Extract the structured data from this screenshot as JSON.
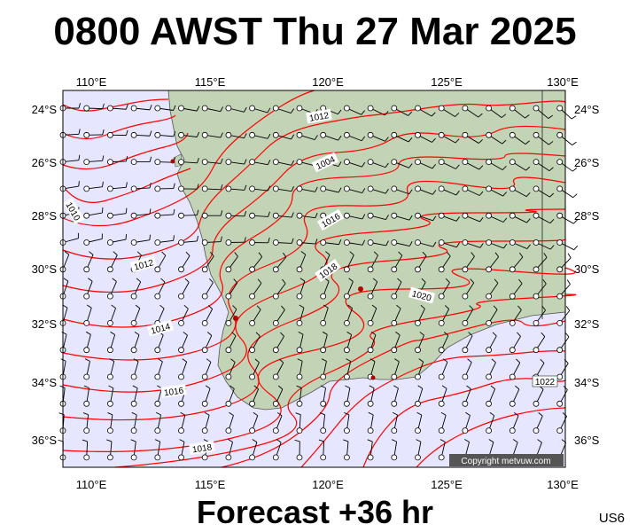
{
  "header": {
    "title": "0800 AWST Thu 27 Mar 2025"
  },
  "footer": {
    "forecast_label": "Forecast +36 hr",
    "region_code": "US6"
  },
  "copyright": "Copyright metvuw.com",
  "axes": {
    "lon_ticks": [
      "110°E",
      "115°E",
      "120°E",
      "125°E",
      "130°E"
    ],
    "lat_ticks": [
      "24°S",
      "26°S",
      "28°S",
      "30°S",
      "32°S",
      "34°S",
      "36°S"
    ]
  },
  "isobar_labels": [
    "1010",
    "1012",
    "1014",
    "1016",
    "1018",
    "1012",
    "1004",
    "1016",
    "1018",
    "1020",
    "1022"
  ],
  "colors": {
    "sea": "#e6e6ff",
    "land": "#c3d3b5",
    "isobar": "#ff0000",
    "wind_barb": "#000000",
    "station": "#b00000"
  }
}
